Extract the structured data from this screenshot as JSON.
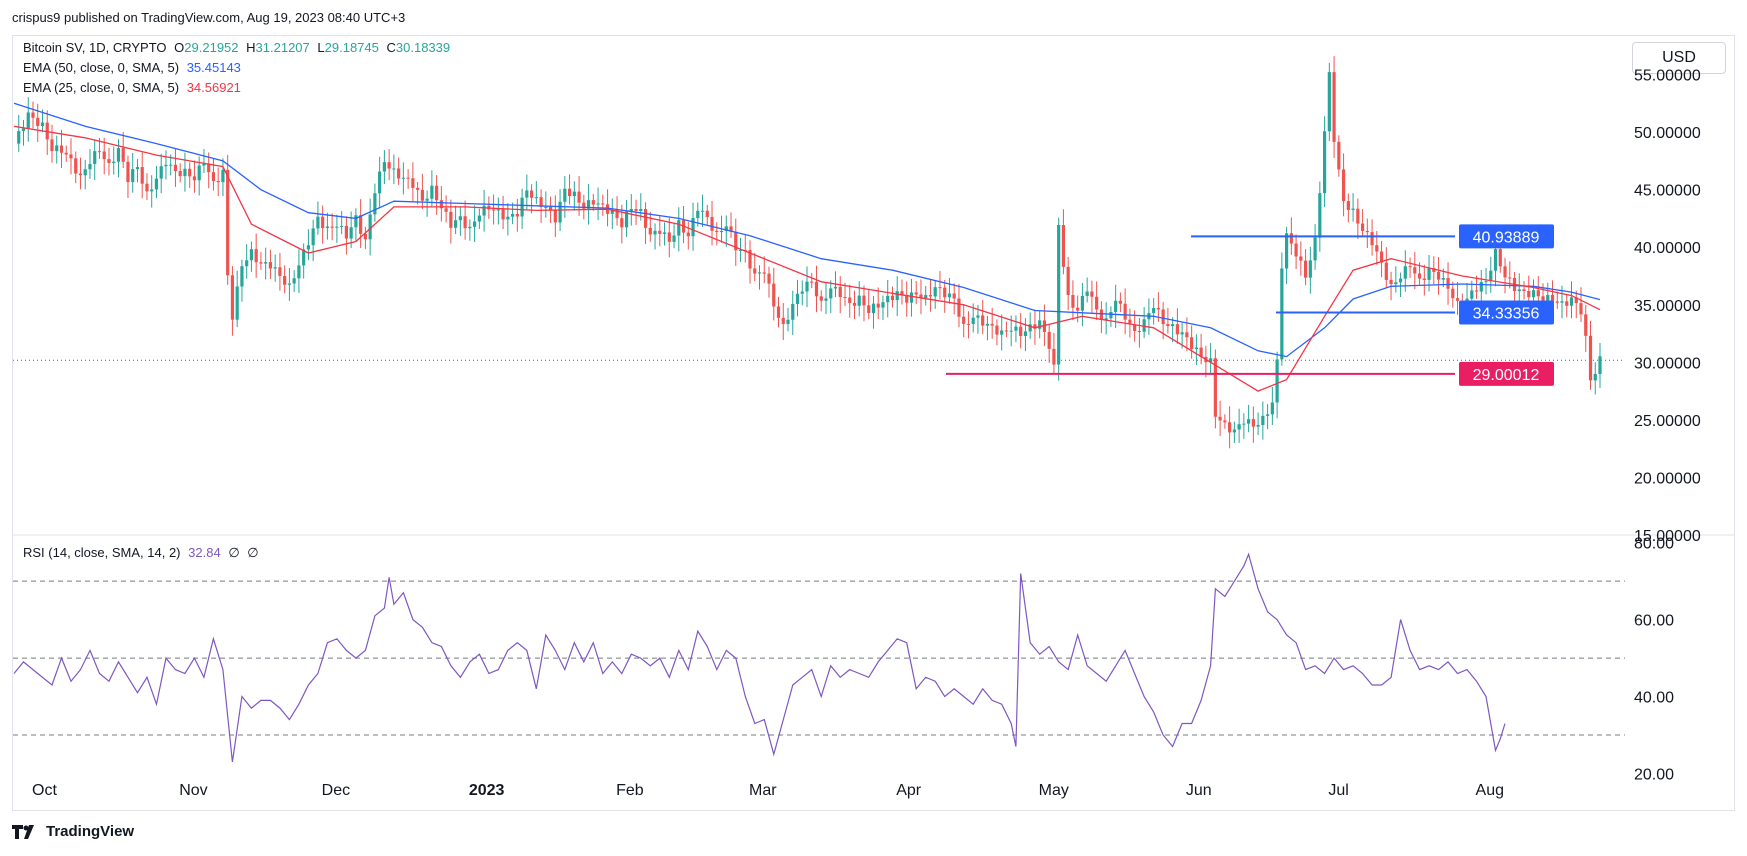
{
  "header": {
    "publisher_line": "crispus9 published on TradingView.com, Aug 19, 2023 08:40 UTC+3"
  },
  "legend": {
    "symbol": {
      "label": "Bitcoin SV, 1D, CRYPTO",
      "o_key": "O",
      "o": "29.21952",
      "h_key": "H",
      "h": "31.21207",
      "l_key": "L",
      "l": "29.18745",
      "c_key": "C",
      "c": "30.18339"
    },
    "ema50": {
      "label": "EMA (50, close, 0, SMA, 5)",
      "value": "35.45143"
    },
    "ema25": {
      "label": "EMA (25, close, 0, SMA, 5)",
      "value": "34.56921"
    },
    "rsi": {
      "label": "RSI (14, close, SMA, 14, 2)",
      "value": "32.84",
      "extra1": "∅",
      "extra2": "∅"
    }
  },
  "currency_button": "USD",
  "footer": {
    "brand": "TradingView"
  },
  "colors": {
    "up": "#26a69a",
    "down": "#ef5350",
    "ema50": "#2962ff",
    "ema25": "#f23645",
    "rsi": "#7e57c2",
    "level_blue": "#2962ff",
    "level_red": "#e91e63",
    "price_line": "#2962ff"
  },
  "chart_data": {
    "type": "candlestick",
    "price_ticks": [
      "55.00000",
      "50.00000",
      "45.00000",
      "40.00000",
      "35.00000",
      "30.00000",
      "25.00000",
      "20.00000",
      "15.00000"
    ],
    "price_ylim": [
      15,
      58
    ],
    "rsi_ticks": [
      "80.00",
      "60.00",
      "40.00",
      "20.00"
    ],
    "rsi_ylim": [
      17,
      82
    ],
    "rsi_levels": [
      70,
      50,
      30
    ],
    "x_labels": [
      "Oct",
      "Nov",
      "Dec",
      "2023",
      "Feb",
      "Mar",
      "Apr",
      "May",
      "Jun",
      "Jul",
      "Aug"
    ],
    "last_price": 30.18,
    "horizontal_levels": [
      {
        "value": 40.93889,
        "label": "40.93889",
        "color": "blue"
      },
      {
        "value": 34.33356,
        "label": "34.33356",
        "color": "blue"
      },
      {
        "value": 29.00012,
        "label": "29.00012",
        "color": "red"
      }
    ],
    "close_path": [
      [
        0,
        49.0
      ],
      [
        3,
        51.5
      ],
      [
        6,
        50.5
      ],
      [
        8,
        48.5
      ],
      [
        10,
        48.5
      ],
      [
        12,
        47.5
      ],
      [
        14,
        46.0
      ],
      [
        16,
        47.5
      ],
      [
        18,
        48.5
      ],
      [
        20,
        47.0
      ],
      [
        22,
        48.5
      ],
      [
        24,
        46.0
      ],
      [
        26,
        47.0
      ],
      [
        28,
        44.5
      ],
      [
        30,
        46.0
      ],
      [
        32,
        47.5
      ],
      [
        34,
        46.5
      ],
      [
        36,
        46.5
      ],
      [
        38,
        46.0
      ],
      [
        40,
        47.5
      ],
      [
        42,
        45.5
      ],
      [
        44,
        46.5
      ],
      [
        45,
        37.5
      ],
      [
        46,
        34.0
      ],
      [
        48,
        38.5
      ],
      [
        50,
        39.5
      ],
      [
        52,
        38.5
      ],
      [
        54,
        38.5
      ],
      [
        56,
        37.5
      ],
      [
        58,
        36.5
      ],
      [
        60,
        38.5
      ],
      [
        62,
        40.5
      ],
      [
        64,
        42.5
      ],
      [
        66,
        41.5
      ],
      [
        68,
        42.0
      ],
      [
        70,
        41.0
      ],
      [
        72,
        42.5
      ],
      [
        74,
        40.5
      ],
      [
        76,
        45.0
      ],
      [
        78,
        47.5
      ],
      [
        80,
        46.5
      ],
      [
        82,
        46.0
      ],
      [
        84,
        45.5
      ],
      [
        86,
        44.0
      ],
      [
        88,
        45.0
      ],
      [
        90,
        43.5
      ],
      [
        92,
        42.0
      ],
      [
        94,
        42.5
      ],
      [
        96,
        41.5
      ],
      [
        98,
        43.0
      ],
      [
        100,
        43.5
      ],
      [
        102,
        43.0
      ],
      [
        104,
        42.5
      ],
      [
        106,
        43.0
      ],
      [
        108,
        45.0
      ],
      [
        110,
        44.0
      ],
      [
        112,
        43.5
      ],
      [
        114,
        42.5
      ],
      [
        116,
        45.0
      ],
      [
        118,
        44.5
      ],
      [
        120,
        43.5
      ],
      [
        122,
        44.0
      ],
      [
        124,
        43.5
      ],
      [
        126,
        43.0
      ],
      [
        128,
        42.0
      ],
      [
        130,
        43.5
      ],
      [
        132,
        43.0
      ],
      [
        134,
        41.0
      ],
      [
        136,
        41.5
      ],
      [
        138,
        40.5
      ],
      [
        140,
        42.0
      ],
      [
        142,
        41.0
      ],
      [
        144,
        43.5
      ],
      [
        146,
        42.5
      ],
      [
        148,
        41.0
      ],
      [
        150,
        42.0
      ],
      [
        152,
        40.0
      ],
      [
        154,
        39.5
      ],
      [
        156,
        37.5
      ],
      [
        158,
        38.0
      ],
      [
        160,
        35.0
      ],
      [
        162,
        33.0
      ],
      [
        164,
        35.0
      ],
      [
        166,
        36.5
      ],
      [
        168,
        37.0
      ],
      [
        170,
        35.0
      ],
      [
        172,
        36.5
      ],
      [
        174,
        36.0
      ],
      [
        176,
        35.0
      ],
      [
        178,
        35.5
      ],
      [
        180,
        34.5
      ],
      [
        182,
        35.0
      ],
      [
        184,
        35.5
      ],
      [
        186,
        36.0
      ],
      [
        188,
        35.5
      ],
      [
        190,
        36.0
      ],
      [
        192,
        35.5
      ],
      [
        194,
        36.5
      ],
      [
        196,
        36.0
      ],
      [
        198,
        35.5
      ],
      [
        200,
        33.0
      ],
      [
        202,
        34.0
      ],
      [
        204,
        33.5
      ],
      [
        206,
        33.0
      ],
      [
        208,
        32.5
      ],
      [
        210,
        33.0
      ],
      [
        212,
        32.5
      ],
      [
        214,
        33.0
      ],
      [
        216,
        33.5
      ],
      [
        218,
        31.5
      ],
      [
        219,
        29.5
      ],
      [
        220,
        42.0
      ],
      [
        221,
        38.5
      ],
      [
        222,
        35.5
      ],
      [
        224,
        34.5
      ],
      [
        226,
        36.5
      ],
      [
        228,
        34.5
      ],
      [
        230,
        33.5
      ],
      [
        232,
        35.5
      ],
      [
        234,
        34.0
      ],
      [
        236,
        32.5
      ],
      [
        238,
        33.5
      ],
      [
        240,
        35.0
      ],
      [
        242,
        33.5
      ],
      [
        244,
        33.0
      ],
      [
        246,
        32.5
      ],
      [
        248,
        31.5
      ],
      [
        250,
        30.5
      ],
      [
        252,
        30.0
      ],
      [
        253,
        25.5
      ],
      [
        255,
        24.5
      ],
      [
        257,
        24.0
      ],
      [
        259,
        25.0
      ],
      [
        261,
        24.5
      ],
      [
        263,
        25.0
      ],
      [
        265,
        26.5
      ],
      [
        266,
        30.0
      ],
      [
        267,
        38.5
      ],
      [
        268,
        41.0
      ],
      [
        270,
        39.5
      ],
      [
        272,
        37.5
      ],
      [
        274,
        40.5
      ],
      [
        275,
        45.0
      ],
      [
        276,
        50.0
      ],
      [
        277,
        55.0
      ],
      [
        278,
        49.5
      ],
      [
        279,
        46.5
      ],
      [
        280,
        44.0
      ],
      [
        282,
        43.0
      ],
      [
        284,
        41.5
      ],
      [
        286,
        40.5
      ],
      [
        288,
        38.5
      ],
      [
        290,
        36.5
      ],
      [
        292,
        37.5
      ],
      [
        294,
        38.5
      ],
      [
        296,
        37.0
      ],
      [
        298,
        38.0
      ],
      [
        300,
        37.5
      ],
      [
        302,
        36.5
      ],
      [
        304,
        35.0
      ],
      [
        306,
        35.5
      ],
      [
        308,
        36.5
      ],
      [
        310,
        37.0
      ],
      [
        312,
        39.5
      ],
      [
        314,
        37.5
      ],
      [
        316,
        36.5
      ],
      [
        318,
        36.0
      ],
      [
        320,
        36.0
      ],
      [
        322,
        35.5
      ],
      [
        324,
        35.5
      ],
      [
        326,
        35.0
      ],
      [
        328,
        35.5
      ],
      [
        330,
        34.5
      ],
      [
        331,
        32.0
      ],
      [
        332,
        28.5
      ],
      [
        333,
        29.2
      ],
      [
        334,
        30.18
      ]
    ],
    "ema50_path": [
      [
        0,
        52.5
      ],
      [
        15,
        50.5
      ],
      [
        30,
        49.0
      ],
      [
        44,
        47.5
      ],
      [
        52,
        45.0
      ],
      [
        62,
        43.0
      ],
      [
        72,
        42.5
      ],
      [
        80,
        44.0
      ],
      [
        95,
        43.8
      ],
      [
        110,
        43.6
      ],
      [
        125,
        43.4
      ],
      [
        140,
        42.5
      ],
      [
        155,
        41.0
      ],
      [
        170,
        39.0
      ],
      [
        185,
        38.0
      ],
      [
        200,
        36.5
      ],
      [
        215,
        34.5
      ],
      [
        225,
        34.3
      ],
      [
        240,
        34.0
      ],
      [
        252,
        33.0
      ],
      [
        262,
        31.0
      ],
      [
        268,
        30.5
      ],
      [
        276,
        33.0
      ],
      [
        282,
        35.5
      ],
      [
        290,
        36.6
      ],
      [
        305,
        36.8
      ],
      [
        320,
        36.6
      ],
      [
        328,
        36.1
      ],
      [
        334,
        35.45
      ]
    ],
    "ema25_path": [
      [
        0,
        50.5
      ],
      [
        15,
        49.5
      ],
      [
        30,
        48.0
      ],
      [
        44,
        47.0
      ],
      [
        50,
        42.0
      ],
      [
        62,
        39.5
      ],
      [
        72,
        40.5
      ],
      [
        80,
        43.5
      ],
      [
        95,
        43.5
      ],
      [
        110,
        43.2
      ],
      [
        125,
        43.3
      ],
      [
        140,
        42.0
      ],
      [
        155,
        39.5
      ],
      [
        170,
        37.0
      ],
      [
        185,
        36.0
      ],
      [
        200,
        35.0
      ],
      [
        215,
        33.0
      ],
      [
        225,
        34.0
      ],
      [
        240,
        33.0
      ],
      [
        252,
        30.0
      ],
      [
        262,
        27.5
      ],
      [
        268,
        28.5
      ],
      [
        276,
        34.0
      ],
      [
        282,
        38.0
      ],
      [
        290,
        39.0
      ],
      [
        305,
        37.5
      ],
      [
        320,
        36.5
      ],
      [
        328,
        35.8
      ],
      [
        334,
        34.57
      ]
    ],
    "rsi_path": [
      [
        0,
        46
      ],
      [
        2,
        49
      ],
      [
        5,
        46
      ],
      [
        8,
        43
      ],
      [
        10,
        50
      ],
      [
        12,
        44
      ],
      [
        14,
        47
      ],
      [
        16,
        52
      ],
      [
        18,
        46
      ],
      [
        20,
        44
      ],
      [
        22,
        49
      ],
      [
        24,
        45
      ],
      [
        26,
        41
      ],
      [
        28,
        45
      ],
      [
        30,
        38
      ],
      [
        32,
        50
      ],
      [
        34,
        47
      ],
      [
        36,
        46
      ],
      [
        38,
        50
      ],
      [
        40,
        45
      ],
      [
        42,
        55
      ],
      [
        44,
        47
      ],
      [
        46,
        23
      ],
      [
        48,
        40
      ],
      [
        50,
        37
      ],
      [
        52,
        39
      ],
      [
        54,
        39
      ],
      [
        56,
        37
      ],
      [
        58,
        34
      ],
      [
        60,
        38
      ],
      [
        62,
        43
      ],
      [
        64,
        46
      ],
      [
        66,
        54
      ],
      [
        68,
        55
      ],
      [
        70,
        52
      ],
      [
        72,
        50
      ],
      [
        74,
        52
      ],
      [
        76,
        61
      ],
      [
        78,
        63
      ],
      [
        79,
        71
      ],
      [
        80,
        64
      ],
      [
        82,
        67
      ],
      [
        84,
        60
      ],
      [
        86,
        58
      ],
      [
        88,
        54
      ],
      [
        90,
        53
      ],
      [
        92,
        48
      ],
      [
        94,
        45
      ],
      [
        96,
        49
      ],
      [
        98,
        51
      ],
      [
        100,
        46
      ],
      [
        102,
        47
      ],
      [
        104,
        52
      ],
      [
        106,
        54
      ],
      [
        108,
        52
      ],
      [
        110,
        42
      ],
      [
        112,
        56
      ],
      [
        114,
        52
      ],
      [
        116,
        47
      ],
      [
        118,
        54
      ],
      [
        120,
        49
      ],
      [
        122,
        54
      ],
      [
        124,
        46
      ],
      [
        126,
        49
      ],
      [
        128,
        46
      ],
      [
        130,
        51
      ],
      [
        132,
        50
      ],
      [
        134,
        48
      ],
      [
        136,
        50
      ],
      [
        138,
        45
      ],
      [
        140,
        52
      ],
      [
        142,
        47
      ],
      [
        144,
        57
      ],
      [
        146,
        53
      ],
      [
        148,
        47
      ],
      [
        150,
        52
      ],
      [
        152,
        50
      ],
      [
        154,
        40
      ],
      [
        156,
        33
      ],
      [
        158,
        34
      ],
      [
        160,
        25
      ],
      [
        162,
        34
      ],
      [
        164,
        43
      ],
      [
        166,
        45
      ],
      [
        168,
        47
      ],
      [
        170,
        40
      ],
      [
        172,
        48
      ],
      [
        174,
        45
      ],
      [
        176,
        47
      ],
      [
        178,
        46
      ],
      [
        180,
        45
      ],
      [
        182,
        49
      ],
      [
        184,
        52
      ],
      [
        186,
        55
      ],
      [
        188,
        54
      ],
      [
        190,
        42
      ],
      [
        192,
        45
      ],
      [
        194,
        44
      ],
      [
        196,
        40
      ],
      [
        198,
        42
      ],
      [
        200,
        40
      ],
      [
        202,
        38
      ],
      [
        204,
        42
      ],
      [
        206,
        39
      ],
      [
        208,
        38
      ],
      [
        210,
        33
      ],
      [
        211,
        27
      ],
      [
        212,
        72
      ],
      [
        214,
        54
      ],
      [
        216,
        51
      ],
      [
        218,
        53
      ],
      [
        220,
        49
      ],
      [
        222,
        47
      ],
      [
        224,
        56
      ],
      [
        226,
        48
      ],
      [
        228,
        46
      ],
      [
        230,
        44
      ],
      [
        232,
        48
      ],
      [
        234,
        52
      ],
      [
        236,
        46
      ],
      [
        238,
        40
      ],
      [
        240,
        36
      ],
      [
        242,
        30
      ],
      [
        244,
        27
      ],
      [
        246,
        33
      ],
      [
        248,
        33
      ],
      [
        250,
        39
      ],
      [
        252,
        48
      ],
      [
        253,
        68
      ],
      [
        255,
        66
      ],
      [
        257,
        70
      ],
      [
        259,
        74
      ],
      [
        260,
        77
      ],
      [
        262,
        68
      ],
      [
        264,
        62
      ],
      [
        266,
        60
      ],
      [
        268,
        56
      ],
      [
        270,
        54
      ],
      [
        272,
        47
      ],
      [
        274,
        48
      ],
      [
        276,
        46
      ],
      [
        278,
        50
      ],
      [
        280,
        47
      ],
      [
        282,
        48
      ],
      [
        284,
        46
      ],
      [
        286,
        43
      ],
      [
        288,
        43
      ],
      [
        290,
        45
      ],
      [
        292,
        60
      ],
      [
        294,
        52
      ],
      [
        296,
        47
      ],
      [
        298,
        48
      ],
      [
        300,
        47
      ],
      [
        302,
        49
      ],
      [
        304,
        46
      ],
      [
        306,
        47
      ],
      [
        308,
        44
      ],
      [
        310,
        40
      ],
      [
        312,
        26
      ],
      [
        313,
        29
      ],
      [
        314,
        33
      ]
    ],
    "rsi_value": 32.84
  }
}
